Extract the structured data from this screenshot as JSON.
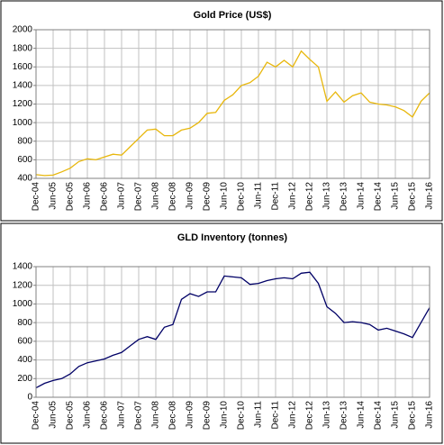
{
  "chart_data": [
    {
      "type": "line",
      "title": "Gold Price (US$)",
      "categories": [
        "Dec-04",
        null,
        "Jun-05",
        null,
        "Dec-05",
        null,
        "Jun-06",
        null,
        "Dec-06",
        null,
        "Jun-07",
        null,
        "Dec-07",
        null,
        "Jun-08",
        null,
        "Dec-08",
        null,
        "Jun-09",
        null,
        "Dec-09",
        null,
        "Jun-10",
        null,
        "Dec-10",
        null,
        "Jun-11",
        null,
        "Dec-11",
        null,
        "Jun-12",
        null,
        "Dec-12",
        null,
        "Jun-13",
        null,
        "Dec-13",
        null,
        "Jun-14",
        null,
        "Dec-14",
        null,
        "Jun-15",
        null,
        "Dec-15",
        null,
        "Jun-16"
      ],
      "values": [
        440,
        430,
        435,
        470,
        510,
        580,
        610,
        600,
        630,
        660,
        650,
        740,
        830,
        920,
        930,
        860,
        860,
        920,
        940,
        1000,
        1100,
        1110,
        1240,
        1300,
        1400,
        1430,
        1500,
        1650,
        1600,
        1670,
        1600,
        1770,
        1680,
        1600,
        1230,
        1330,
        1220,
        1290,
        1320,
        1220,
        1200,
        1190,
        1170,
        1130,
        1060,
        1230,
        1320
      ],
      "color": "#e8b70c",
      "ylim": [
        400,
        2000
      ],
      "yticks": [
        400,
        600,
        800,
        1000,
        1200,
        1400,
        1600,
        1800,
        2000
      ],
      "grid": true
    },
    {
      "type": "line",
      "title": "GLD Inventory (tonnes)",
      "categories": [
        "Dec-04",
        null,
        "Jun-05",
        null,
        "Dec-05",
        null,
        "Jun-06",
        null,
        "Dec-06",
        null,
        "Jun-07",
        null,
        "Dec-07",
        null,
        "Jun-08",
        null,
        "Dec-08",
        null,
        "Jun-09",
        null,
        "Dec-09",
        null,
        "Jun-10",
        null,
        "Dec-10",
        null,
        "Jun-11",
        null,
        "Dec-11",
        null,
        "Jun-12",
        null,
        "Dec-12",
        null,
        "Jun-13",
        null,
        "Dec-13",
        null,
        "Jun-14",
        null,
        "Dec-14",
        null,
        "Jun-15",
        null,
        "Dec-15",
        null,
        "Jun-16"
      ],
      "values": [
        100,
        150,
        180,
        200,
        250,
        330,
        370,
        390,
        410,
        450,
        480,
        550,
        620,
        650,
        620,
        750,
        780,
        1050,
        1110,
        1080,
        1130,
        1130,
        1300,
        1290,
        1280,
        1210,
        1220,
        1250,
        1270,
        1280,
        1270,
        1330,
        1340,
        1220,
        970,
        900,
        800,
        810,
        800,
        780,
        720,
        740,
        710,
        680,
        640,
        800,
        960
      ],
      "color": "#000066",
      "ylim": [
        0,
        1400
      ],
      "yticks": [
        0,
        200,
        400,
        600,
        800,
        1000,
        1200,
        1400
      ],
      "grid": true
    }
  ]
}
